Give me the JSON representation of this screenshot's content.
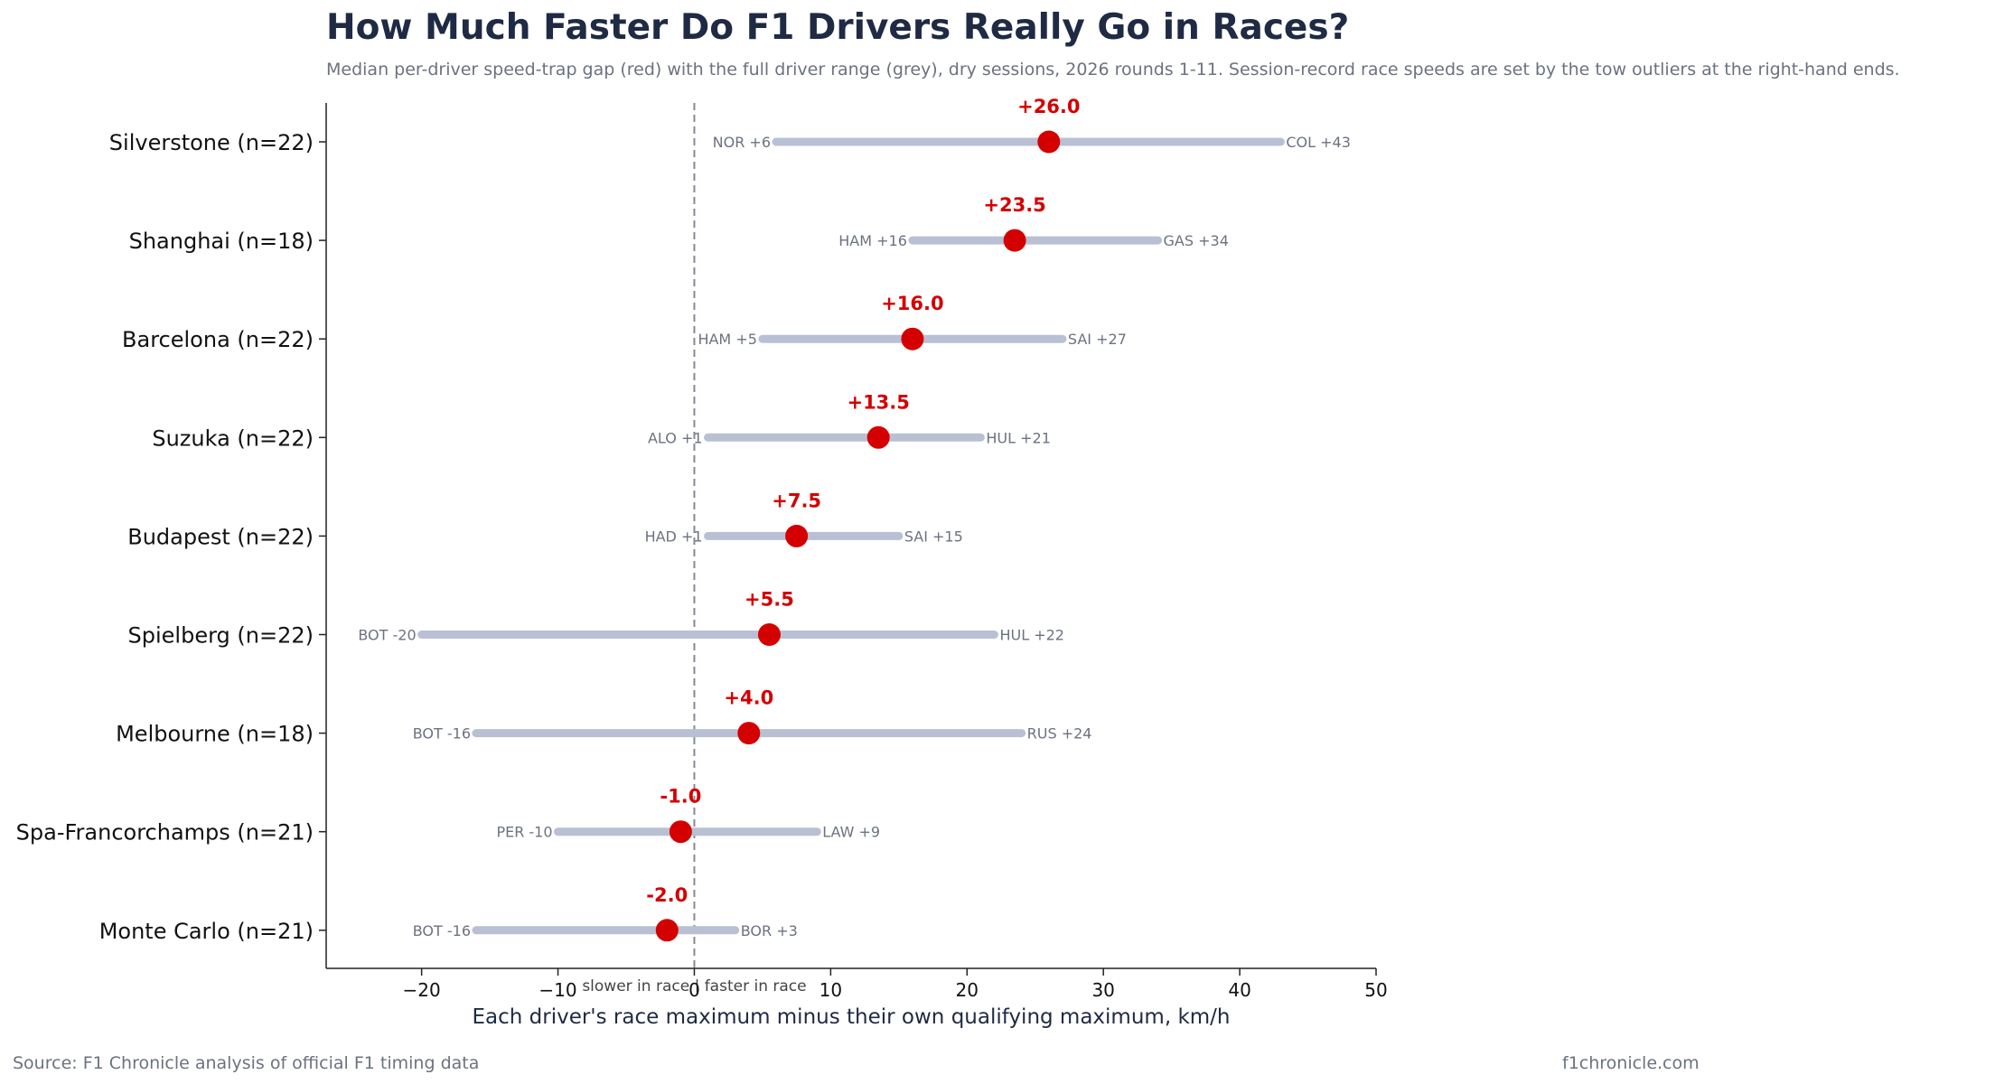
{
  "header": {
    "title": "How Much Faster Do F1 Drivers Really Go in Races?",
    "subtitle": "Median per-driver speed-trap gap (red) with the full driver range (grey), dry sessions, 2026 rounds 1-11. Session-record race speeds are set by the tow outliers at the right-hand ends."
  },
  "footer": {
    "source": "Source: F1 Chronicle analysis of official F1 timing data",
    "credit": "f1chronicle.com"
  },
  "chart_data": {
    "type": "dumbbell",
    "title": "How Much Faster Do F1 Drivers Really Go in Races?",
    "xlabel": "Each driver's race maximum minus their own qualifying maximum, km/h",
    "zero_annotation": "slower in race | faster in race",
    "xlim": [
      -27,
      50
    ],
    "xticks": [
      -20,
      -10,
      0,
      10,
      20,
      30,
      40,
      50
    ],
    "xtick_labels": [
      "−20",
      "−10",
      "0",
      "10",
      "20",
      "30",
      "40",
      "50"
    ],
    "colors": {
      "median": "#d40000",
      "range": "#b9c0d4",
      "zero_line": "#888899"
    },
    "categories": [
      {
        "label": "Silverstone  (n=22)",
        "median": 26.0,
        "median_label": "+26.0",
        "min": 6,
        "min_label": "NOR +6",
        "max": 43,
        "max_label": "COL +43"
      },
      {
        "label": "Shanghai  (n=18)",
        "median": 23.5,
        "median_label": "+23.5",
        "min": 16,
        "min_label": "HAM +16",
        "max": 34,
        "max_label": "GAS +34"
      },
      {
        "label": "Barcelona  (n=22)",
        "median": 16.0,
        "median_label": "+16.0",
        "min": 5,
        "min_label": "HAM +5",
        "max": 27,
        "max_label": "SAI +27"
      },
      {
        "label": "Suzuka  (n=22)",
        "median": 13.5,
        "median_label": "+13.5",
        "min": 1,
        "min_label": "ALO +1",
        "max": 21,
        "max_label": "HUL +21"
      },
      {
        "label": "Budapest  (n=22)",
        "median": 7.5,
        "median_label": "+7.5",
        "min": 1,
        "min_label": "HAD +1",
        "max": 15,
        "max_label": "SAI +15"
      },
      {
        "label": "Spielberg  (n=22)",
        "median": 5.5,
        "median_label": "+5.5",
        "min": -20,
        "min_label": "BOT -20",
        "max": 22,
        "max_label": "HUL +22"
      },
      {
        "label": "Melbourne  (n=18)",
        "median": 4.0,
        "median_label": "+4.0",
        "min": -16,
        "min_label": "BOT -16",
        "max": 24,
        "max_label": "RUS +24"
      },
      {
        "label": "Spa-Francorchamps  (n=21)",
        "median": -1.0,
        "median_label": "-1.0",
        "min": -10,
        "min_label": "PER -10",
        "max": 9,
        "max_label": "LAW +9"
      },
      {
        "label": "Monte Carlo  (n=21)",
        "median": -2.0,
        "median_label": "-2.0",
        "min": -16,
        "min_label": "BOT -16",
        "max": 3,
        "max_label": "BOR +3"
      }
    ]
  }
}
